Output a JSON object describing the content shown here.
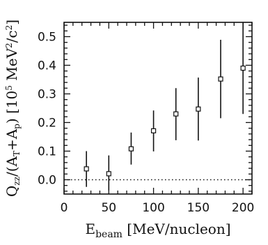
{
  "chart_data": {
    "type": "scatter",
    "xlabel": {
      "main": "E",
      "sub": "beam",
      "rest": " [MeV/nucleon]"
    },
    "ylabel": {
      "q": "Q",
      "q_sub": "zz",
      "mid": "/(A",
      "t_sub": "T",
      "plus": "+A",
      "p_sub": "p",
      "close": ")  [10",
      "exp5": "5",
      "unit": " MeV",
      "exp2": "2",
      "slash": "/c",
      "exp2b": "2",
      "end": "]"
    },
    "xlim": [
      0,
      210
    ],
    "ylim": [
      -0.05,
      0.55
    ],
    "xticks": [
      0,
      50,
      100,
      150,
      200
    ],
    "xtick_labels": [
      "0",
      "50",
      "100",
      "150",
      "200"
    ],
    "yticks": [
      0.0,
      0.1,
      0.2,
      0.3,
      0.4,
      0.5
    ],
    "ytick_labels": [
      "0.0",
      "0.1",
      "0.2",
      "0.3",
      "0.4",
      "0.5"
    ],
    "zero_line": true,
    "grid": false,
    "points": [
      {
        "x": 25,
        "y": 0.038,
        "err_low": 0.063,
        "err_high": 0.062
      },
      {
        "x": 50,
        "y": 0.021,
        "err_low": 0.058,
        "err_high": 0.064
      },
      {
        "x": 75,
        "y": 0.108,
        "err_low": 0.055,
        "err_high": 0.057
      },
      {
        "x": 100,
        "y": 0.171,
        "err_low": 0.072,
        "err_high": 0.071
      },
      {
        "x": 125,
        "y": 0.23,
        "err_low": 0.092,
        "err_high": 0.09
      },
      {
        "x": 150,
        "y": 0.247,
        "err_low": 0.11,
        "err_high": 0.11
      },
      {
        "x": 175,
        "y": 0.352,
        "err_low": 0.137,
        "err_high": 0.137
      },
      {
        "x": 200,
        "y": 0.39,
        "err_low": 0.16,
        "err_high": 0.16
      }
    ]
  }
}
